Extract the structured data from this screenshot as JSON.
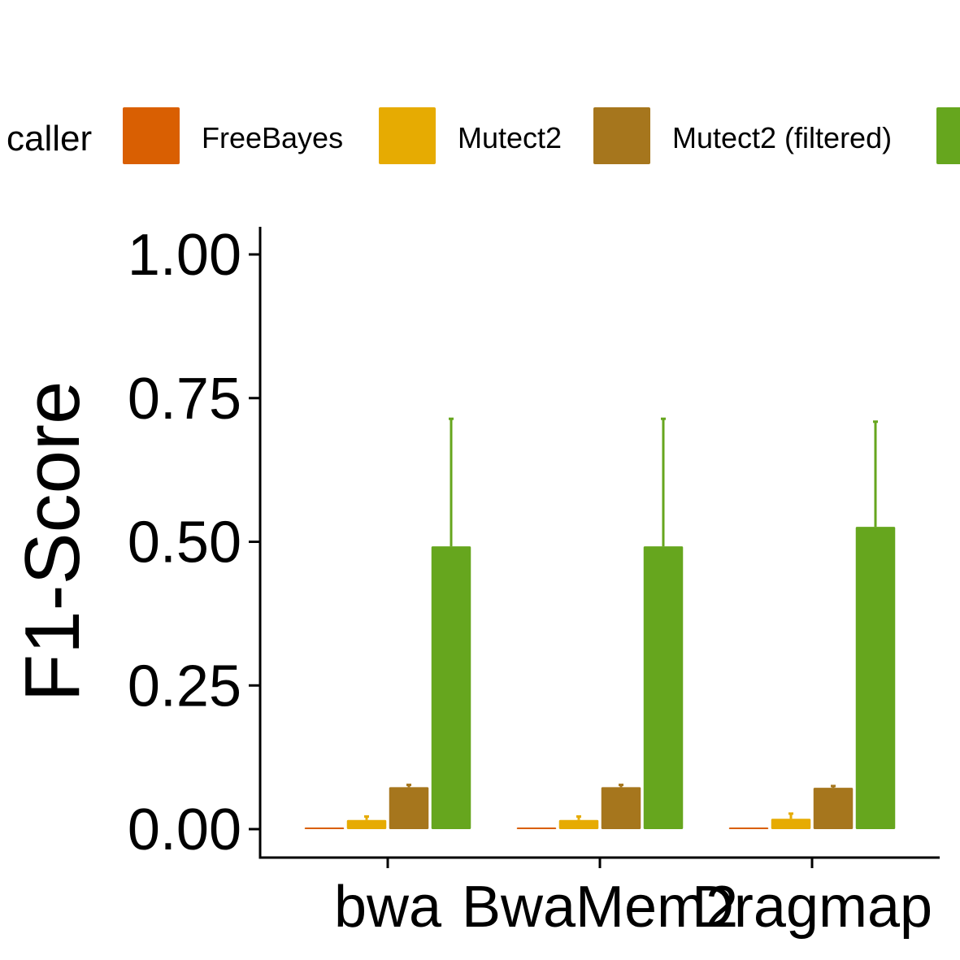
{
  "chart_data": {
    "type": "bar",
    "title": "",
    "xlabel": "",
    "ylabel": "F1-Score",
    "ylim": [
      0,
      1.05
    ],
    "yticks": [
      "0.00",
      "0.25",
      "0.50",
      "0.75",
      "1.00"
    ],
    "yticks_values": [
      0,
      0.25,
      0.5,
      0.75,
      1.0
    ],
    "categories": [
      "bwa",
      "BwaMem2",
      "Dragmap"
    ],
    "legend": {
      "title": "caller",
      "placement": "top"
    },
    "grid": false,
    "series": [
      {
        "name": "FreeBayes",
        "color": "#D95F02",
        "values": [
          0.0,
          0.0,
          0.0
        ],
        "error_upper": [
          0.0,
          0.0,
          0.0
        ]
      },
      {
        "name": "Mutect2",
        "color": "#E6AB02",
        "values": [
          0.016,
          0.016,
          0.018
        ],
        "error_upper": [
          0.022,
          0.022,
          0.027
        ]
      },
      {
        "name": "Mutect2 (filtered)",
        "color": "#A6761D",
        "values": [
          0.073,
          0.073,
          0.072
        ],
        "error_upper": [
          0.077,
          0.077,
          0.075
        ]
      },
      {
        "name": "",
        "color": "#66A61E",
        "values": [
          0.492,
          0.492,
          0.526
        ],
        "error_upper": [
          0.714,
          0.714,
          0.709
        ]
      }
    ]
  }
}
